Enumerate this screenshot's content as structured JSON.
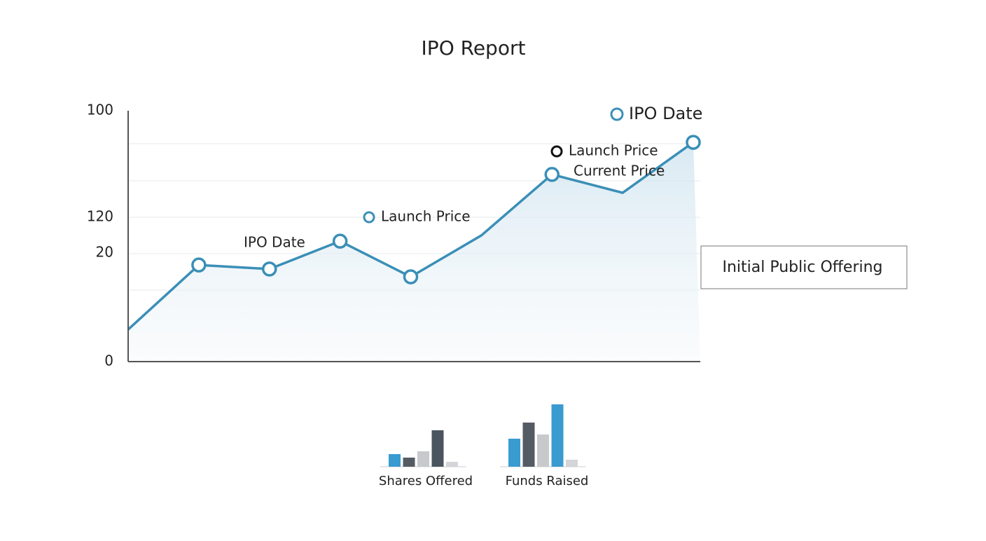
{
  "chart_data": [
    {
      "type": "line",
      "title": "IPO Report",
      "categories": [
        null,
        null,
        null,
        null,
        null,
        null,
        null,
        null,
        null
      ],
      "series": [
        {
          "name": null,
          "color": "#3a8fb7",
          "values": [
            12.8,
            38.5,
            36.9,
            48.0,
            33.8,
            50.3,
            74.6,
            67.3,
            87.4
          ],
          "markers": [
            false,
            true,
            true,
            true,
            true,
            false,
            true,
            false,
            true
          ]
        }
      ],
      "ylim": [
        0,
        100
      ],
      "yticks": [
        0,
        100
      ],
      "other_y_labels": [
        "120",
        "20"
      ],
      "annotations": [
        "IPO Date",
        "Launch Price",
        "Launch Price",
        "Current Price",
        "IPO Date"
      ],
      "callout": "Initial Public Offering"
    },
    {
      "type": "bar",
      "title": "Shares Offered",
      "values": [
        18,
        13,
        22,
        52,
        7
      ],
      "colors": [
        "#3a9bd0",
        "#555b63",
        "#c8c9cc",
        "#4a5560",
        "#d4d5d8"
      ]
    },
    {
      "type": "bar",
      "title": "Funds Raised",
      "values": [
        40,
        63,
        46,
        89,
        10
      ],
      "colors": [
        "#3a9bd0",
        "#555b63",
        "#c8c9cc",
        "#3a9bd0",
        "#d4d5d8"
      ]
    }
  ]
}
